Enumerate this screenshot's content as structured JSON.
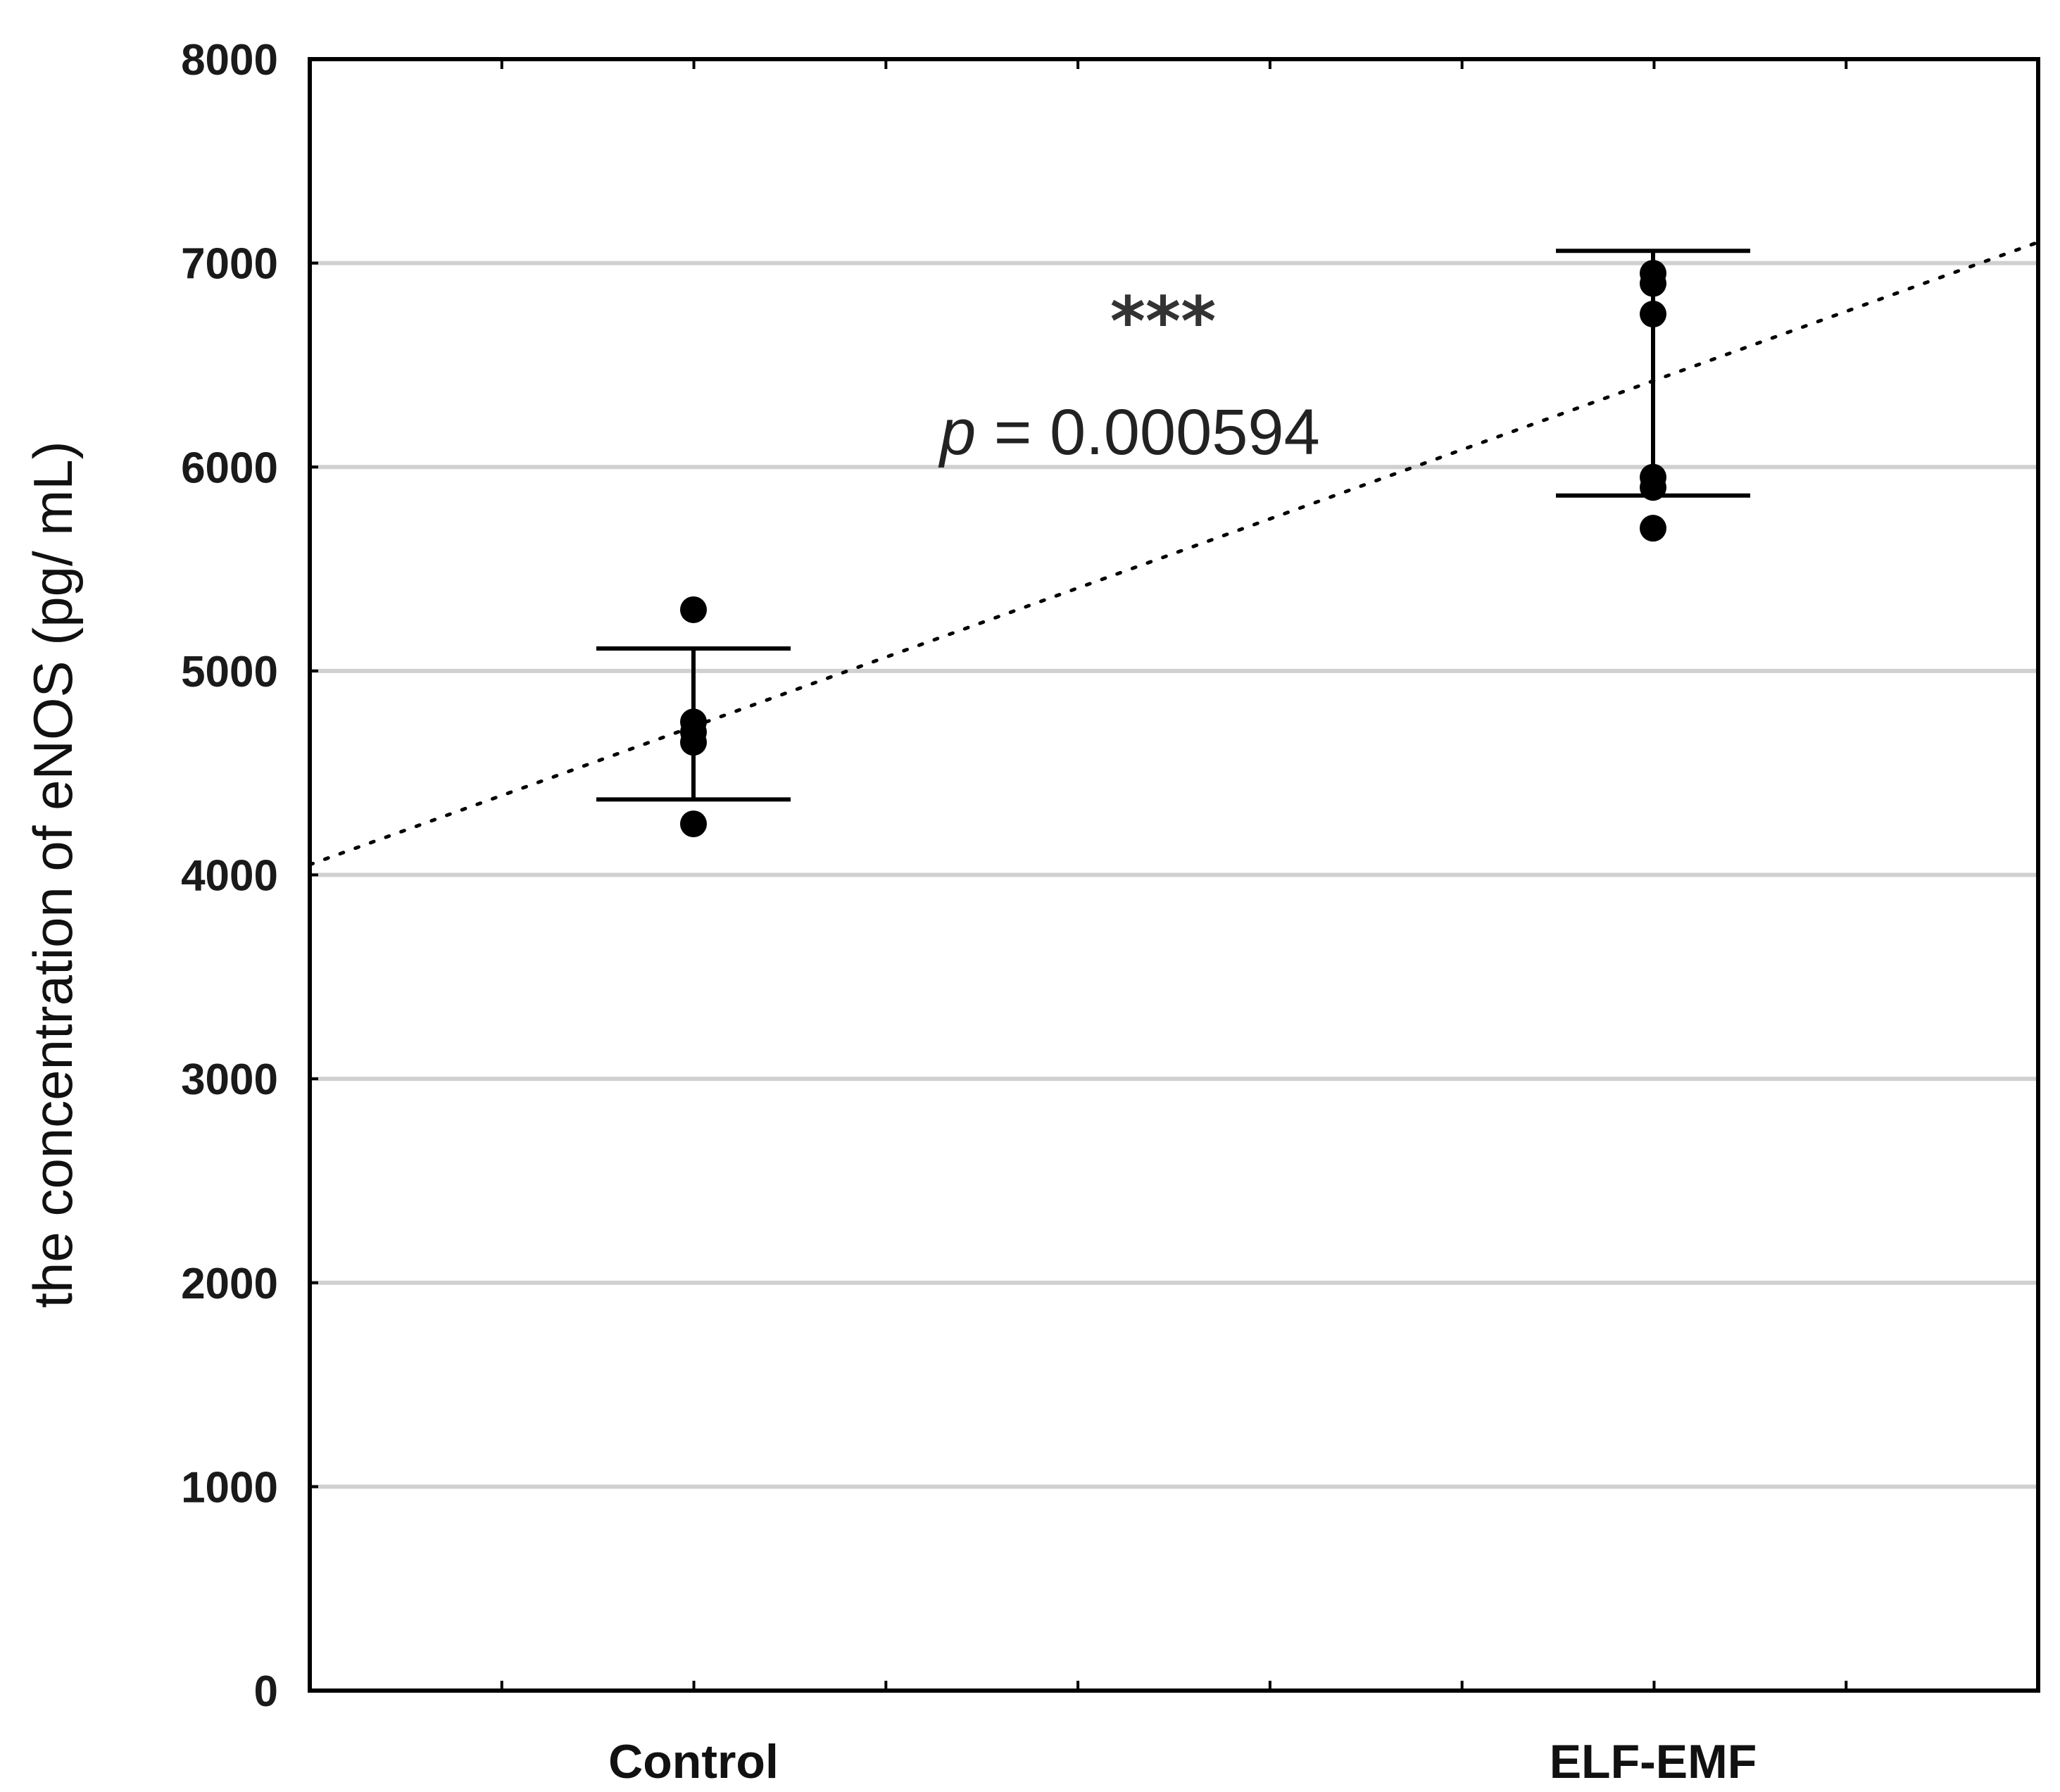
{
  "chart_data": {
    "type": "scatter",
    "categories": [
      "Control",
      "ELF-EMF"
    ],
    "ylabel": "the concentration of eNOS  (pg/ mL)",
    "xlabel": "",
    "ylim": [
      0,
      8000
    ],
    "yticks": [
      "0",
      "1000",
      "2000",
      "3000",
      "4000",
      "5000",
      "6000",
      "7000",
      "8000"
    ],
    "grid": "horizontal",
    "points": [
      {
        "category": "Control",
        "values": [
          5300,
          4750,
          4700,
          4650,
          4250
        ]
      },
      {
        "category": "ELF-EMF",
        "values": [
          6950,
          6900,
          6750,
          5950,
          5900,
          5700
        ]
      }
    ],
    "error_bars": [
      {
        "category": "Control",
        "center": 4740,
        "upper": 5110,
        "lower": 4370
      },
      {
        "category": "ELF-EMF",
        "center": 6460,
        "upper": 7060,
        "lower": 5860
      }
    ],
    "trend_line": {
      "style": "dotted",
      "from": {
        "x": 0.6,
        "y": 4050
      },
      "to": {
        "x": 2.4,
        "y": 7100
      }
    },
    "annotation": {
      "significance": "***",
      "p_label": "p",
      "p_text": " = 0.000594"
    },
    "colors": {
      "points": "#000000",
      "grid": "#d0d0d0",
      "axis": "#000000"
    }
  }
}
